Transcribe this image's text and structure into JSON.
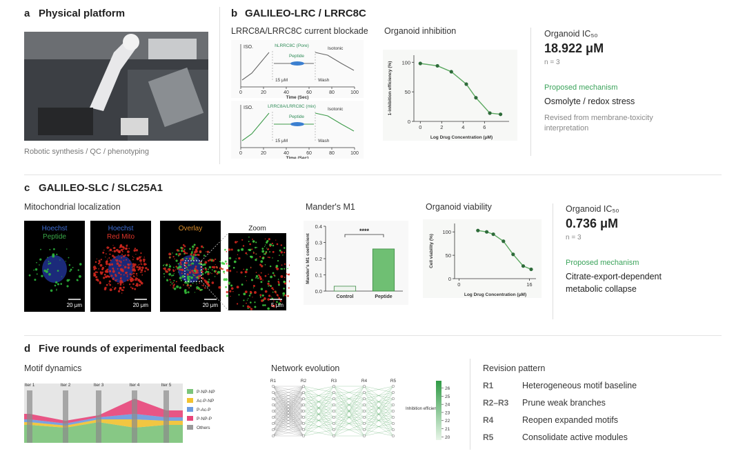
{
  "panel_a": {
    "label": "a",
    "title": "Physical platform",
    "caption": "Robotic synthesis / QC / phenotyping"
  },
  "panel_b": {
    "label": "b",
    "title": "GALILEO-LRC / LRRC8C",
    "current_blockade": {
      "title": "LRRC8A/LRRC8C current blockade",
      "xlabel": "Time (Sec)",
      "xticks": [
        0,
        20,
        40,
        60,
        80,
        100
      ],
      "traces": [
        {
          "left": "ISO.",
          "name": "hLRRC8C (Pore)",
          "right": "Isotonic",
          "treatment": "Peptide",
          "dose": "15 μM",
          "wash": "Wash"
        },
        {
          "left": "ISO.",
          "name": "LRRC8A/LRRC8C (mix)",
          "right": "Isotonic",
          "treatment": "Peptide",
          "dose": "15 μM",
          "wash": "Wash"
        }
      ]
    },
    "chart": {
      "type": "line",
      "title": "Organoid inhibition",
      "xlabel": "Log Drug Concentration (μM)",
      "ylabel": "1-inhibition efficiency (%)",
      "x": [
        0,
        1.6,
        2.9,
        4.3,
        5.2,
        6.5,
        7.5
      ],
      "values": [
        98,
        94,
        84,
        63,
        40,
        14,
        12
      ],
      "xlim": [
        -0.6,
        8.3
      ],
      "ylim": [
        0,
        112
      ],
      "xticks": [
        0,
        2,
        4,
        6
      ],
      "yticks": [
        0,
        50,
        100
      ],
      "color": "#2e6b3a"
    },
    "ic50": {
      "label": "Organoid IC₅₀",
      "value": "18.922 μM",
      "n": "n = 3",
      "mechanism_label": "Proposed mechanism",
      "mechanism": "Osmolyte / redox stress",
      "note": "Revised from membrane-toxicity interpretation"
    }
  },
  "panel_c": {
    "label": "c",
    "title": "GALILEO-SLC / SLC25A1",
    "localization": {
      "title": "Mitochondrial localization",
      "tiles": [
        {
          "labels": [
            "Hoechst",
            "Peptide"
          ],
          "scale": "20 μm"
        },
        {
          "labels": [
            "Hoechst",
            "Red Mito"
          ],
          "scale": "20 μm"
        },
        {
          "labels": [
            "Overlay"
          ],
          "scale": "20 μm"
        },
        {
          "labels": [
            "Zoom"
          ],
          "scale": "5 μm"
        }
      ]
    },
    "manders": {
      "type": "bar",
      "title": "Mander's M1",
      "ylabel": "Mander's M1 coefficient",
      "categories": [
        "Control",
        "Peptide"
      ],
      "values": [
        0.03,
        0.26
      ],
      "colors": [
        "#eef3ee",
        "#6fbf73"
      ],
      "ylim": [
        0,
        0.4
      ],
      "yticks": [
        {
          "value": 0,
          "label": "0.0"
        },
        0.1,
        0.2,
        0.3,
        0.4
      ],
      "significance": "****"
    },
    "viability": {
      "type": "line",
      "title": "Organoid viability",
      "xlabel": "Log Drug Concentration (μM)",
      "ylabel": "Cell viability (%)",
      "x": [
        4.3,
        6.3,
        7.8,
        10.1,
        12.3,
        14.6,
        16.4
      ],
      "values": [
        103,
        100,
        95,
        80,
        52,
        27,
        20
      ],
      "xlim": [
        -1,
        17.5
      ],
      "ylim": [
        0,
        118
      ],
      "xticks": [
        0,
        16
      ],
      "yticks": [
        0,
        50,
        100
      ],
      "color": "#2e6b3a"
    },
    "ic50": {
      "label": "Organoid IC₅₀",
      "value": "0.736 μM",
      "n": "n = 3",
      "mechanism_label": "Proposed mechanism",
      "mechanism": "Citrate-export-dependent metabolic collapse"
    }
  },
  "panel_d": {
    "label": "d",
    "title": "Five rounds of experimental feedback",
    "motif": {
      "title": "Motif dynamics",
      "iterations": [
        "Iter 1",
        "Iter 2",
        "Iter 3",
        "Iter 4",
        "Iter 5"
      ],
      "series": [
        {
          "name": "P-NP-NP",
          "color": "#7cc47a"
        },
        {
          "name": "Ac-P-NP",
          "color": "#f2c230"
        },
        {
          "name": "P-Ac-P",
          "color": "#6b9be0"
        },
        {
          "name": "P-NP-P",
          "color": "#e8457a"
        },
        {
          "name": "Others",
          "color": "#9a9a9a"
        }
      ]
    },
    "network": {
      "title": "Network evolution",
      "rounds": [
        "R1",
        "R2",
        "R3",
        "R4",
        "R5"
      ],
      "colorbar_label": "Inhibition efficiency",
      "colorbar_lim": [
        19.6,
        26.9
      ],
      "colorbar_ticks": [
        20,
        21,
        22,
        23,
        24,
        25,
        26
      ]
    },
    "revision": {
      "title": "Revision pattern",
      "rows": [
        [
          "R1",
          "Heterogeneous motif baseline"
        ],
        [
          "R2–R3",
          "Prune weak branches"
        ],
        [
          "R4",
          "Reopen expanded motifs"
        ],
        [
          "R5",
          "Consolidate active modules"
        ]
      ]
    }
  }
}
